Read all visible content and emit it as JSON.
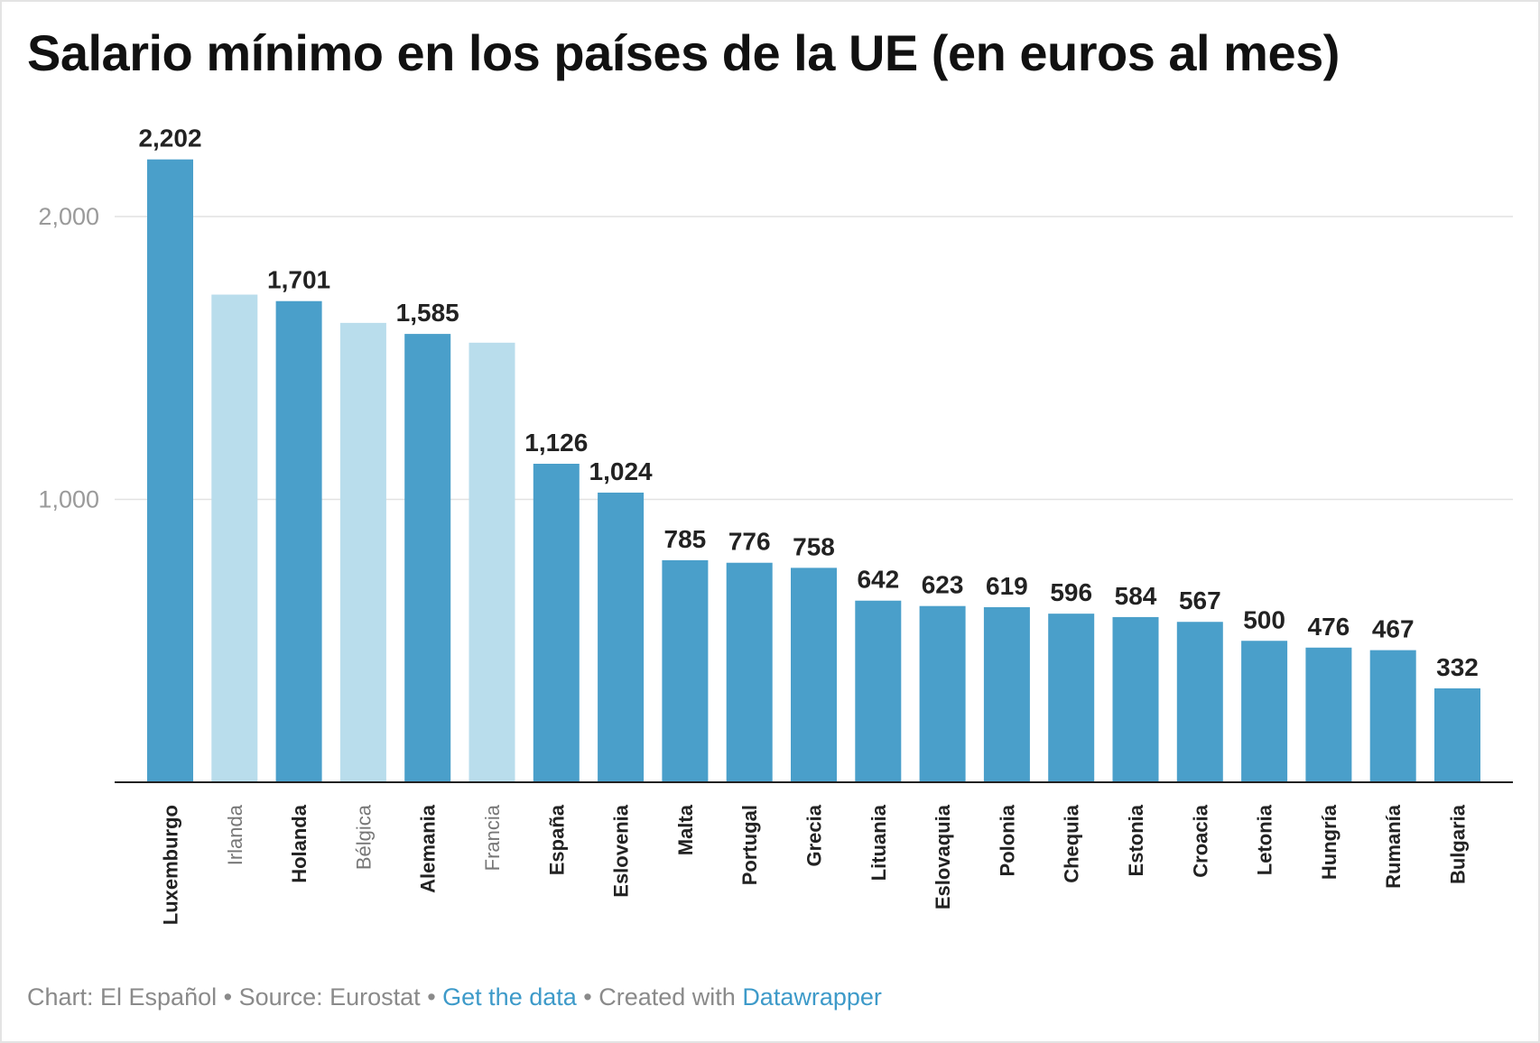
{
  "chart_data": {
    "type": "bar",
    "title": "Salario mínimo en los países de la UE (en euros al mes)",
    "categories": [
      "Luxemburgo",
      "Irlanda",
      "Holanda",
      "Bélgica",
      "Alemania",
      "Francia",
      "España",
      "Eslovenia",
      "Malta",
      "Portugal",
      "Grecia",
      "Lituania",
      "Eslovaquia",
      "Polonia",
      "Chequia",
      "Estonia",
      "Croacia",
      "Letonia",
      "Hungría",
      "Rumanía",
      "Bulgaria"
    ],
    "values": [
      2202,
      1724,
      1701,
      1624,
      1585,
      1554,
      1126,
      1024,
      785,
      776,
      758,
      642,
      623,
      619,
      596,
      584,
      567,
      500,
      476,
      467,
      332
    ],
    "highlighted": [
      true,
      false,
      true,
      false,
      true,
      false,
      true,
      true,
      true,
      true,
      true,
      true,
      true,
      true,
      true,
      true,
      true,
      true,
      true,
      true,
      true
    ],
    "data_labels": [
      "2,202",
      "",
      "1,701",
      "",
      "1,585",
      "",
      "1,126",
      "1,024",
      "785",
      "776",
      "758",
      "642",
      "623",
      "619",
      "596",
      "584",
      "567",
      "500",
      "476",
      "467",
      "332"
    ],
    "ylim": [
      0,
      2202
    ],
    "yticks": [
      1000,
      2000
    ],
    "ytick_labels": [
      "1,000",
      "2,000"
    ],
    "grid": true,
    "xlabel": "",
    "ylabel": "",
    "colors": {
      "highlight": "#4a9fca",
      "muted": "#b9ddec"
    }
  },
  "footer": {
    "chart_credit": "Chart: El Español",
    "sep": " • ",
    "source": "Source: Eurostat",
    "get_data": "Get the data",
    "created_with": "Created with ",
    "datawrapper": "Datawrapper"
  }
}
